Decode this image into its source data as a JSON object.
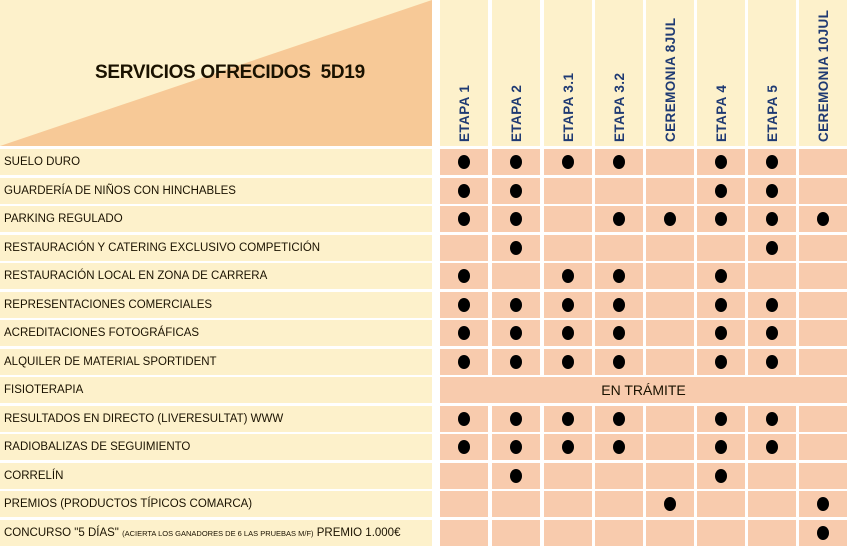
{
  "title": "SERVICIOS OFRECIDOS  5D19",
  "columns": [
    "ETAPA 1",
    "ETAPA 2",
    "ETAPA 3.1",
    "ETAPA 3.2",
    "CEREMONIA 8JUL",
    "ETAPA 4",
    "ETAPA 5",
    "CEREMONIA 10JUL"
  ],
  "rows": [
    {
      "label": "SUELO DURO",
      "marks": [
        1,
        1,
        1,
        1,
        0,
        1,
        1,
        0
      ]
    },
    {
      "label": "GUARDERÍA DE NIÑOS CON HINCHABLES",
      "marks": [
        1,
        1,
        0,
        0,
        0,
        1,
        1,
        0
      ]
    },
    {
      "label": "PARKING  REGULADO",
      "marks": [
        1,
        1,
        0,
        1,
        1,
        1,
        1,
        1
      ]
    },
    {
      "label": "RESTAURACIÓN Y CATERING  EXCLUSIVO COMPETICIÓN",
      "marks": [
        0,
        1,
        0,
        0,
        0,
        0,
        1,
        0
      ]
    },
    {
      "label": "RESTAURACIÓN LOCAL EN ZONA DE CARRERA",
      "marks": [
        1,
        0,
        1,
        1,
        0,
        1,
        0,
        0
      ]
    },
    {
      "label": "REPRESENTACIONES COMERCIALES",
      "marks": [
        1,
        1,
        1,
        1,
        0,
        1,
        1,
        0
      ]
    },
    {
      "label": "ACREDITACIONES FOTOGRÁFICAS",
      "marks": [
        1,
        1,
        1,
        1,
        0,
        1,
        1,
        0
      ]
    },
    {
      "label": "ALQUILER DE MATERIAL SPORTIDENT",
      "marks": [
        1,
        1,
        1,
        1,
        0,
        1,
        1,
        0
      ]
    },
    {
      "label": "FISIOTERAPIA",
      "span": "EN TRÁMITE"
    },
    {
      "label": "RESULTADOS EN DIRECTO (LIVERESULTAT) WWW",
      "marks": [
        1,
        1,
        1,
        1,
        0,
        1,
        1,
        0
      ]
    },
    {
      "label": "RADIOBALIZAS DE SEGUIMIENTO",
      "marks": [
        1,
        1,
        1,
        1,
        0,
        1,
        1,
        0
      ]
    },
    {
      "label": "CORRELÍN",
      "marks": [
        0,
        1,
        0,
        0,
        0,
        1,
        0,
        0
      ]
    },
    {
      "label": "PREMIOS (PRODUCTOS TÍPICOS COMARCA)",
      "marks": [
        0,
        0,
        0,
        0,
        1,
        0,
        0,
        1
      ]
    },
    {
      "label": "CONCURSO \"5 DÍAS\"",
      "label_note": "(ACIERTA LOS GANADORES DE 6 LAS PRUEBAS M/F)",
      "label_suffix": "PREMIO 1.000€",
      "marks": [
        0,
        0,
        0,
        0,
        0,
        0,
        0,
        1
      ]
    }
  ],
  "colors": {
    "label_bg": "#fdf1cb",
    "cell_bg": "#f8cbad",
    "triangle": "#f7c997",
    "header_text": "#1f3a73"
  }
}
